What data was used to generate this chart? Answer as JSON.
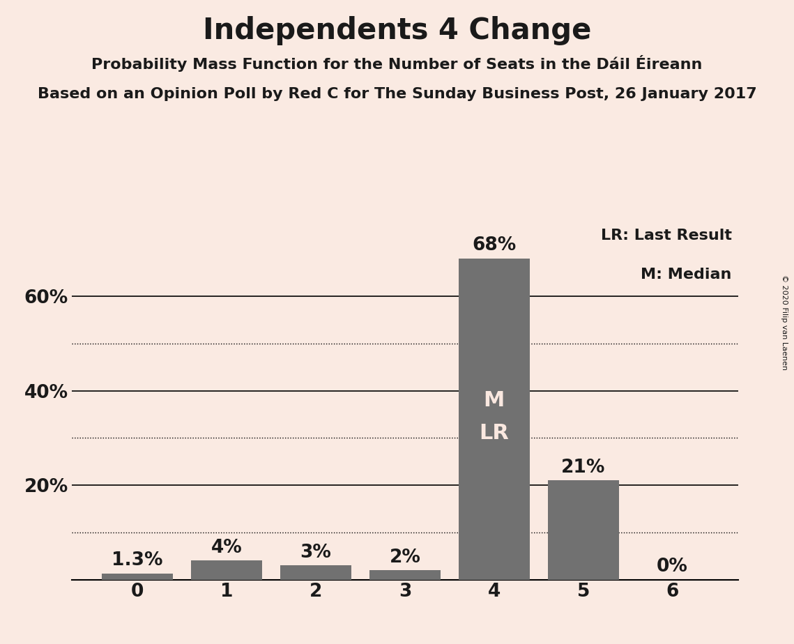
{
  "title": "Independents 4 Change",
  "subtitle1": "Probability Mass Function for the Number of Seats in the Dáil Éireann",
  "subtitle2": "Based on an Opinion Poll by Red C for The Sunday Business Post, 26 January 2017",
  "copyright": "© 2020 Filip van Laenen",
  "categories": [
    0,
    1,
    2,
    3,
    4,
    5,
    6
  ],
  "values": [
    1.3,
    4.0,
    3.0,
    2.0,
    68.0,
    21.0,
    0.0
  ],
  "labels": [
    "1.3%",
    "4%",
    "3%",
    "2%",
    "68%",
    "21%",
    "0%"
  ],
  "bar_color": "#717171",
  "background_color": "#FAEAE2",
  "text_color": "#1a1a1a",
  "bar_label_color_light": "#FAE8E0",
  "ylim": [
    0,
    75
  ],
  "yticks_solid": [
    0,
    20,
    40,
    60
  ],
  "yticks_dotted": [
    10,
    30,
    50
  ],
  "legend_lr": "LR: Last Result",
  "legend_m": "M: Median",
  "marker_bar_index": 4,
  "marker_text_top": "M",
  "marker_text_bottom": "LR",
  "title_fontsize": 30,
  "subtitle_fontsize": 16,
  "label_fontsize": 19,
  "tick_fontsize": 19,
  "legend_fontsize": 16,
  "marker_fontsize": 22,
  "copyright_fontsize": 8
}
